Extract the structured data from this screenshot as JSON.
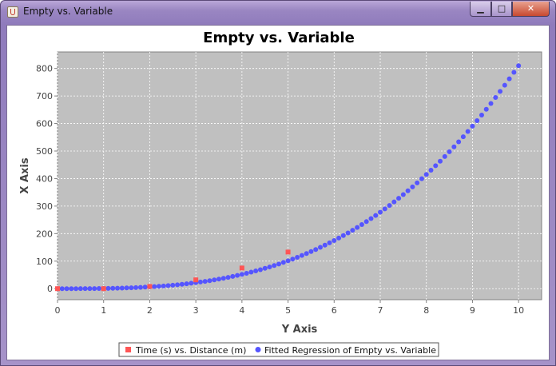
{
  "window": {
    "title": "Empty vs. Variable",
    "minimize": "▁",
    "maximize": "□",
    "close": "✕"
  },
  "chart_data": {
    "type": "scatter",
    "title": "Empty vs. Variable",
    "xlabel": "Y Axis",
    "ylabel": "X Axis",
    "xlim": [
      0,
      10.5
    ],
    "ylim": [
      -40,
      860
    ],
    "xticks": [
      0,
      1,
      2,
      3,
      4,
      5,
      6,
      7,
      8,
      9,
      10
    ],
    "yticks": [
      0,
      100,
      200,
      300,
      400,
      500,
      600,
      700,
      800
    ],
    "grid": true,
    "plot_background": "#c0c0c0",
    "legend_position": "bottom",
    "series": [
      {
        "name": "Time (s) vs. Distance (m)",
        "marker": "square",
        "color": "#ff5555",
        "x": [
          0,
          1,
          2,
          3,
          4,
          5
        ],
        "y": [
          0,
          0,
          8,
          32,
          75,
          133
        ]
      },
      {
        "name": "Fitted Regression of Empty vs. Variable",
        "marker": "circle",
        "color": "#5555ff",
        "fit": "power",
        "coef": 0.81,
        "exponent": 3,
        "x_range": [
          0,
          10
        ],
        "step": 0.1
      }
    ]
  }
}
